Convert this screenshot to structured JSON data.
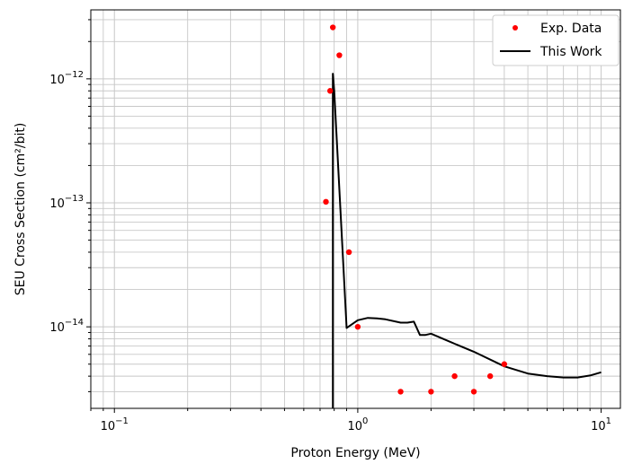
{
  "chart_data": {
    "type": "line",
    "xlabel": "Proton Energy (MeV)",
    "ylabel": "SEU Cross Section (cm²/bit)",
    "xscale": "log",
    "yscale": "log",
    "xlim": [
      0.08,
      12
    ],
    "ylim": [
      2.2e-15,
      3.6e-12
    ],
    "grid": true,
    "legend_position": "top-right",
    "x_ticks": [
      {
        "value": 0.1,
        "base": "10",
        "exp": "−1"
      },
      {
        "value": 1,
        "base": "10",
        "exp": "0"
      },
      {
        "value": 10,
        "base": "10",
        "exp": "1"
      }
    ],
    "y_ticks": [
      {
        "value": 1e-14,
        "base": "10",
        "exp": "−14"
      },
      {
        "value": 1e-13,
        "base": "10",
        "exp": "−13"
      },
      {
        "value": 1e-12,
        "base": "10",
        "exp": "−12"
      }
    ],
    "series": [
      {
        "name": "Exp. Data",
        "style": "markers",
        "color": "#ff0000",
        "x": [
          0.74,
          0.77,
          0.79,
          0.84,
          0.92,
          1.0,
          1.5,
          2.0,
          2.5,
          3.0,
          3.5,
          4.0
        ],
        "y": [
          1.02e-13,
          8e-13,
          2.6e-12,
          1.55e-12,
          4e-14,
          1e-14,
          3e-15,
          3e-15,
          4e-15,
          3e-15,
          4e-15,
          5e-15
        ]
      },
      {
        "name": "This Work",
        "style": "line",
        "color": "#000000",
        "x": [
          0.79,
          0.79,
          0.8,
          0.9,
          1.0,
          1.1,
          1.2,
          1.3,
          1.5,
          1.6,
          1.7,
          1.8,
          1.9,
          2.0,
          2.5,
          3.0,
          4.0,
          5.0,
          6.0,
          7.0,
          8.0,
          9.0,
          10.0
        ],
        "y": [
          2.2e-15,
          1.1e-12,
          8e-13,
          9.8e-15,
          1.13e-14,
          1.18e-14,
          1.17e-14,
          1.15e-14,
          1.08e-14,
          1.08e-14,
          1.1e-14,
          8.6e-15,
          8.6e-15,
          8.8e-15,
          7.3e-15,
          6.3e-15,
          4.8e-15,
          4.2e-15,
          4e-15,
          3.9e-15,
          3.9e-15,
          4.05e-15,
          4.3e-15
        ]
      }
    ]
  }
}
